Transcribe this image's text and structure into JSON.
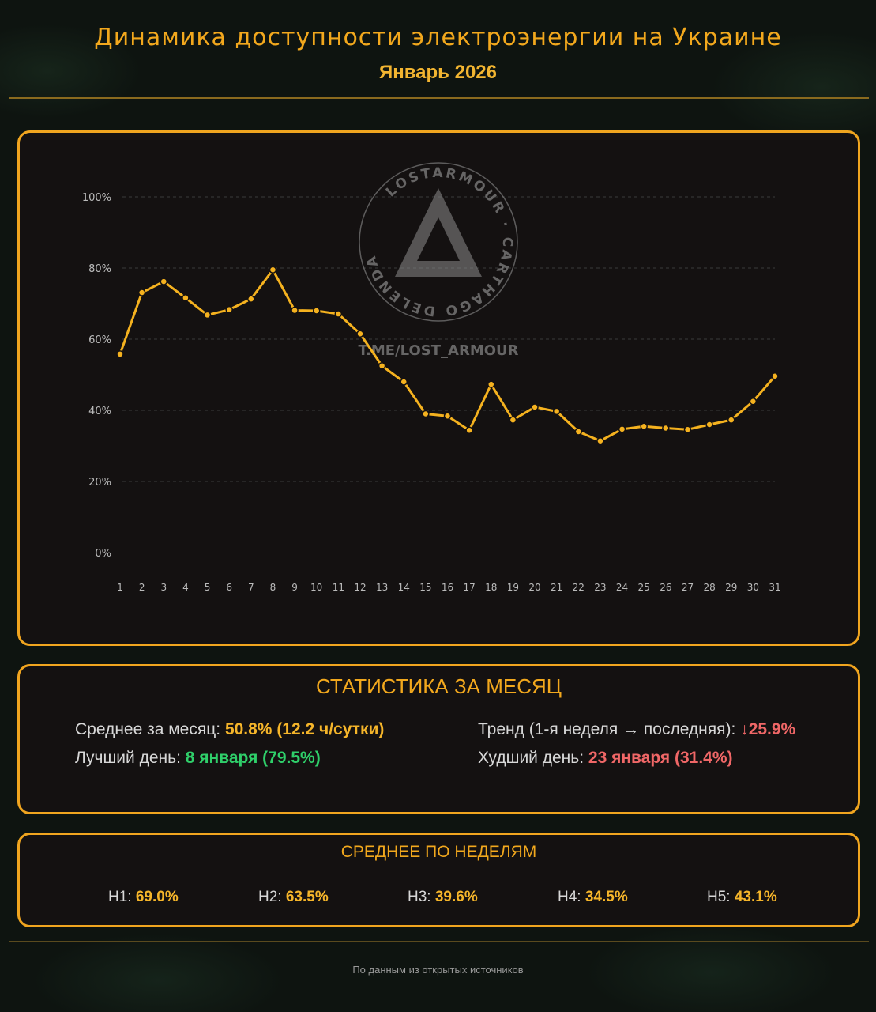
{
  "header": {
    "title": "Динамика доступности электроэнергии на Украине",
    "subtitle": "Январь 2026"
  },
  "watermark": {
    "ring_text": "LOSTARMOUR · CARTHAGO DELENDA EST ·",
    "url": "T.ME/LOST_ARMOUR"
  },
  "chart_data": {
    "type": "line",
    "x": [
      1,
      2,
      3,
      4,
      5,
      6,
      7,
      8,
      9,
      10,
      11,
      12,
      13,
      14,
      15,
      16,
      17,
      18,
      19,
      20,
      21,
      22,
      23,
      24,
      25,
      26,
      27,
      28,
      29,
      30,
      31
    ],
    "values": [
      55.8,
      73.1,
      76.2,
      71.6,
      66.8,
      68.3,
      71.3,
      79.5,
      68.1,
      68.0,
      67.1,
      61.5,
      52.5,
      48.0,
      39.0,
      38.4,
      34.4,
      47.3,
      37.3,
      40.9,
      39.7,
      34.0,
      31.4,
      34.7,
      35.5,
      35.0,
      34.6,
      36.0,
      37.3,
      42.5,
      49.6
    ],
    "ylim": [
      0,
      100
    ],
    "yticks": [
      "0%",
      "20%",
      "40%",
      "60%",
      "80%",
      "100%"
    ],
    "ytick_values": [
      0,
      20,
      40,
      60,
      80,
      100
    ],
    "grid": true,
    "color": "#f5b21f"
  },
  "stats": {
    "title": "СТАТИСТИКА ЗА МЕСЯЦ",
    "avg_label": "Среднее за месяц: ",
    "avg_value": "50.8% (12.2 ч/сутки)",
    "best_label": "Лучший день: ",
    "best_value": "8 января (79.5%)",
    "trend_label": "Тренд (1-я неделя → последняя): ",
    "trend_value": "↓25.9%",
    "worst_label": "Худший день: ",
    "worst_value": "23 января (31.4%)"
  },
  "weeks": {
    "title": "СРЕДНЕЕ ПО НЕДЕЛЯМ",
    "items": [
      {
        "label": "Н1: ",
        "value": "69.0%"
      },
      {
        "label": "Н2: ",
        "value": "63.5%"
      },
      {
        "label": "Н3: ",
        "value": "39.6%"
      },
      {
        "label": "Н4: ",
        "value": "34.5%"
      },
      {
        "label": "Н5: ",
        "value": "43.1%"
      }
    ]
  },
  "footer": "По данным из открытых источников",
  "colors": {
    "accent": "#f2a81d",
    "good": "#2fcf6a",
    "bad": "#f06767",
    "background": "#0e1410"
  }
}
